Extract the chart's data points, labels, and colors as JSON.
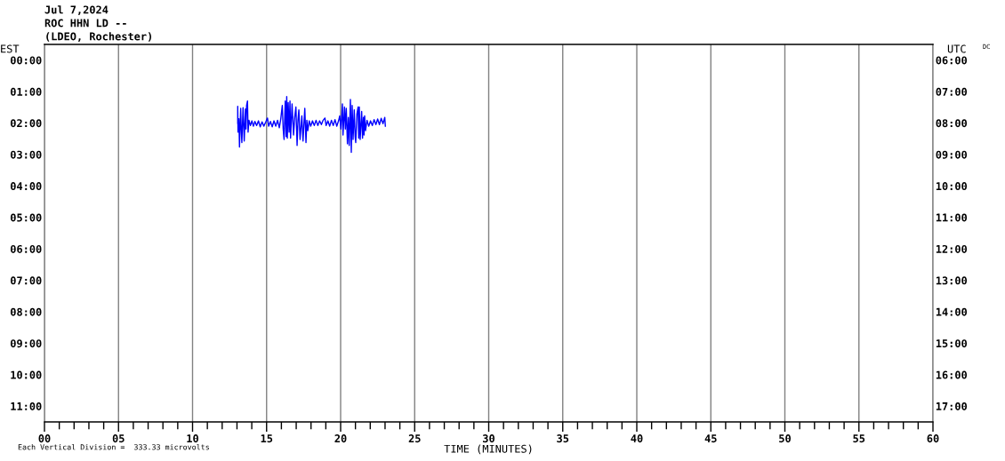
{
  "chart_data": {
    "type": "line",
    "title": "Jul 7,2024",
    "subtitle": "ROC HHN LD --\n(LDEO, Rochester)",
    "xlabel": "TIME (MINUTES)",
    "ylabel": "EST",
    "y2label": "UTC",
    "annotations": [
      "DC",
      "Each Vertical Division =  333.33 microvolts"
    ],
    "x": [
      13.05,
      13.05,
      13.07,
      13.13,
      13.17,
      13.25,
      13.29,
      13.33,
      13.41,
      13.49,
      13.57,
      13.61,
      13.65,
      13.71,
      13.75,
      13.81,
      13.91,
      14.01,
      14.11,
      14.21,
      14.33,
      14.45,
      14.57,
      14.69,
      14.81,
      14.94,
      15.06,
      15.14,
      15.26,
      15.38,
      15.5,
      15.62,
      15.74,
      15.86,
      15.96,
      16.06,
      16.12,
      16.18,
      16.26,
      16.32,
      16.36,
      16.4,
      16.46,
      16.52,
      16.58,
      16.62,
      16.72,
      16.82,
      16.9,
      16.98,
      17.06,
      17.12,
      17.18,
      17.26,
      17.38,
      17.46,
      17.58,
      17.66,
      17.72,
      17.78,
      17.88,
      17.98,
      18.1,
      18.22,
      18.34,
      18.46,
      18.58,
      18.7,
      18.82,
      18.94,
      19.02,
      19.14,
      19.26,
      19.38,
      19.5,
      19.62,
      19.74,
      19.86,
      19.94,
      20.02,
      20.12,
      20.16,
      20.26,
      20.32,
      20.38,
      20.46,
      20.52,
      20.58,
      20.66,
      20.72,
      20.78,
      20.84,
      20.92,
      20.98,
      21.02,
      21.1,
      21.18,
      21.22,
      21.26,
      21.32,
      21.42,
      21.48,
      21.54,
      21.58,
      21.62,
      21.68,
      21.78,
      21.9,
      22.02,
      22.14,
      22.26,
      22.38,
      22.5,
      22.62,
      22.74,
      22.86,
      22.98,
      23.02
    ],
    "series": [
      {
        "color": "#0000ff",
        "values": [
          2.01,
          1.47,
          2.29,
          1.86,
          2.76,
          1.53,
          2.19,
          2.62,
          1.51,
          2.57,
          1.55,
          2.19,
          1.44,
          1.3,
          2.29,
          1.91,
          2.08,
          1.93,
          2.1,
          1.95,
          2.08,
          1.93,
          2.12,
          1.96,
          2.1,
          1.97,
          1.84,
          2.1,
          1.95,
          2.12,
          1.93,
          2.1,
          1.91,
          2.15,
          1.86,
          1.44,
          2.19,
          2.52,
          1.3,
          2.43,
          1.16,
          2.48,
          1.35,
          2.29,
          1.3,
          2.48,
          1.39,
          2.38,
          1.82,
          1.49,
          2.71,
          1.91,
          1.58,
          2.52,
          1.77,
          2.57,
          1.53,
          2.62,
          1.91,
          2.24,
          1.93,
          2.1,
          1.93,
          2.08,
          1.91,
          2.08,
          1.93,
          2.05,
          1.91,
          1.84,
          2.08,
          1.93,
          2.1,
          1.91,
          2.08,
          1.89,
          2.1,
          1.93,
          1.77,
          2.19,
          1.39,
          2.38,
          1.49,
          2.19,
          1.53,
          2.66,
          1.82,
          2.71,
          1.25,
          2.93,
          1.44,
          2.52,
          1.58,
          2.43,
          2.62,
          1.72,
          1.49,
          2.48,
          1.49,
          2.52,
          1.63,
          2.48,
          1.82,
          2.38,
          1.77,
          2.24,
          1.91,
          2.1,
          1.93,
          2.08,
          1.89,
          2.05,
          1.87,
          2.05,
          1.85,
          2.02,
          1.82,
          2.1
        ]
      }
    ],
    "xlim": [
      0,
      60
    ],
    "xticks": [
      {
        "value": 0,
        "label": "00"
      },
      {
        "value": 1,
        "label": null
      },
      {
        "value": 2,
        "label": null
      },
      {
        "value": 3,
        "label": null
      },
      {
        "value": 4,
        "label": null
      },
      {
        "value": 5,
        "label": "05"
      },
      {
        "value": 6,
        "label": null
      },
      {
        "value": 7,
        "label": null
      },
      {
        "value": 8,
        "label": null
      },
      {
        "value": 9,
        "label": null
      },
      10,
      {
        "value": 11,
        "label": null
      },
      {
        "value": 12,
        "label": null
      },
      {
        "value": 13,
        "label": null
      },
      {
        "value": 14,
        "label": null
      },
      15,
      {
        "value": 16,
        "label": null
      },
      {
        "value": 17,
        "label": null
      },
      {
        "value": 18,
        "label": null
      },
      {
        "value": 19,
        "label": null
      },
      20,
      {
        "value": 21,
        "label": null
      },
      {
        "value": 22,
        "label": null
      },
      {
        "value": 23,
        "label": null
      },
      {
        "value": 24,
        "label": null
      },
      25,
      {
        "value": 26,
        "label": null
      },
      {
        "value": 27,
        "label": null
      },
      {
        "value": 28,
        "label": null
      },
      {
        "value": 29,
        "label": null
      },
      30,
      {
        "value": 31,
        "label": null
      },
      {
        "value": 32,
        "label": null
      },
      {
        "value": 33,
        "label": null
      },
      {
        "value": 34,
        "label": null
      },
      35,
      {
        "value": 36,
        "label": null
      },
      {
        "value": 37,
        "label": null
      },
      {
        "value": 38,
        "label": null
      },
      {
        "value": 39,
        "label": null
      },
      40,
      {
        "value": 41,
        "label": null
      },
      {
        "value": 42,
        "label": null
      },
      {
        "value": 43,
        "label": null
      },
      {
        "value": 44,
        "label": null
      },
      45,
      {
        "value": 46,
        "label": null
      },
      {
        "value": 47,
        "label": null
      },
      {
        "value": 48,
        "label": null
      },
      {
        "value": 49,
        "label": null
      },
      50,
      {
        "value": 51,
        "label": null
      },
      {
        "value": 52,
        "label": null
      },
      {
        "value": 53,
        "label": null
      },
      {
        "value": 54,
        "label": null
      },
      55,
      {
        "value": 56,
        "label": null
      },
      {
        "value": 57,
        "label": null
      },
      {
        "value": 58,
        "label": null
      },
      {
        "value": 59,
        "label": null
      },
      60
    ],
    "ylim": [
      11.5,
      -0.5
    ],
    "yticks": [
      {
        "value": 0,
        "label": "00:00"
      },
      {
        "value": 1,
        "label": "01:00"
      },
      {
        "value": 2,
        "label": "02:00"
      },
      {
        "value": 3,
        "label": "03:00"
      },
      {
        "value": 4,
        "label": "04:00"
      },
      {
        "value": 5,
        "label": "05:00"
      },
      {
        "value": 6,
        "label": "06:00"
      },
      {
        "value": 7,
        "label": "07:00"
      },
      {
        "value": 8,
        "label": "08:00"
      },
      {
        "value": 9,
        "label": "09:00"
      },
      {
        "value": 10,
        "label": "10:00"
      },
      {
        "value": 11,
        "label": "11:00"
      }
    ],
    "y2lim": [
      17.5,
      5.5
    ],
    "y2ticks": [
      {
        "value": 6,
        "label": "06:00"
      },
      {
        "value": 7,
        "label": "07:00"
      },
      {
        "value": 8,
        "label": "08:00"
      },
      {
        "value": 9,
        "label": "09:00"
      },
      {
        "value": 10,
        "label": "10:00"
      },
      {
        "value": 11,
        "label": "11:00"
      },
      {
        "value": 12,
        "label": "12:00"
      },
      {
        "value": 13,
        "label": "13:00"
      },
      {
        "value": 14,
        "label": "14:00"
      },
      {
        "value": 15,
        "label": "15:00"
      },
      {
        "value": 16,
        "label": "16:00"
      },
      {
        "value": 17,
        "label": "17:00"
      }
    ],
    "grid": "x",
    "line_style": "solid"
  }
}
